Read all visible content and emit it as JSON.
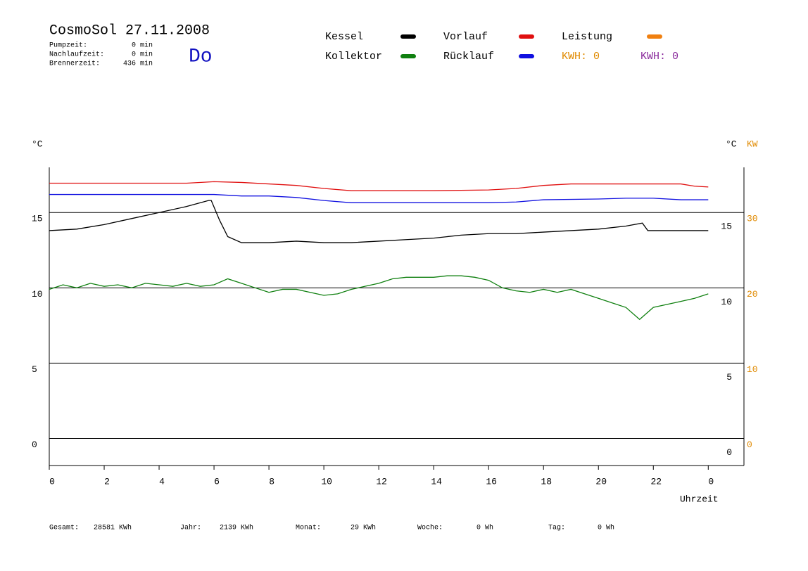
{
  "header": {
    "title": "CosmoSol 27.11.2008",
    "day": "Do",
    "stats": [
      {
        "label": "Pumpzeit:",
        "value": "0 min"
      },
      {
        "label": "Nachlaufzeit:",
        "value": "0 min"
      },
      {
        "label": "Brennerzeit:",
        "value": "436 min"
      }
    ],
    "kwh": [
      {
        "text": "KWH: 0",
        "color": "#e08a00"
      },
      {
        "text": "KWH: 0",
        "color": "#8a2b9c"
      }
    ]
  },
  "footer": [
    {
      "label": "Gesamt:",
      "value": "28581 KWh"
    },
    {
      "label": "Jahr:",
      "value": "2139 KWh"
    },
    {
      "label": "Monat:",
      "value": "29 KWh"
    },
    {
      "label": "Woche:",
      "value": "0 Wh"
    },
    {
      "label": "Tag:",
      "value": "0 Wh"
    }
  ],
  "chart_data": {
    "type": "line",
    "ylabel": "°C",
    "y2label": "°C",
    "y2unit": "KW",
    "xlabel": "Uhrzeit",
    "xlim": [
      0,
      25.3
    ],
    "xticks": [
      0,
      2,
      4,
      6,
      8,
      10,
      12,
      14,
      16,
      18,
      20,
      22,
      {
        "value": 24,
        "label": "0"
      }
    ],
    "ylim": [
      -1.8,
      18
    ],
    "yticks": [
      0,
      5,
      10,
      15
    ],
    "y2lim": [
      -3.6,
      36
    ],
    "y2ticks": [
      0,
      10,
      20,
      30
    ],
    "y2color": "#e08a00",
    "grid": true,
    "series": [
      {
        "name": "Kessel",
        "color": "#000000",
        "x": [
          0,
          1,
          2,
          3,
          4,
          5,
          5.8,
          5.9,
          6.2,
          6.5,
          7,
          8,
          9,
          10,
          11,
          12,
          13,
          14,
          15,
          16,
          17,
          18,
          19,
          20,
          21,
          21.6,
          21.8,
          22,
          23,
          24
        ],
        "values": [
          13.8,
          13.9,
          14.2,
          14.6,
          15.0,
          15.4,
          15.8,
          15.8,
          14.5,
          13.4,
          13.0,
          13.0,
          13.1,
          13.0,
          13.0,
          13.1,
          13.2,
          13.3,
          13.5,
          13.6,
          13.6,
          13.7,
          13.8,
          13.9,
          14.1,
          14.3,
          13.8,
          13.8,
          13.8,
          13.8
        ]
      },
      {
        "name": "Kollektor",
        "color": "#108010",
        "x": [
          0,
          0.5,
          1,
          1.5,
          2,
          2.5,
          3,
          3.5,
          4,
          4.5,
          5,
          5.5,
          6,
          6.5,
          7,
          7.5,
          8,
          8.5,
          9,
          9.5,
          10,
          10.5,
          11,
          11.5,
          12,
          12.5,
          13,
          13.5,
          14,
          14.5,
          15,
          15.5,
          16,
          16.5,
          17,
          17.5,
          18,
          18.5,
          19,
          19.5,
          20,
          20.5,
          21,
          21.5,
          22,
          22.5,
          23,
          23.5,
          24
        ],
        "values": [
          9.9,
          10.2,
          10.0,
          10.3,
          10.1,
          10.2,
          10.0,
          10.3,
          10.2,
          10.1,
          10.3,
          10.1,
          10.2,
          10.6,
          10.3,
          10.0,
          9.7,
          9.9,
          9.9,
          9.7,
          9.5,
          9.6,
          9.9,
          10.1,
          10.3,
          10.6,
          10.7,
          10.7,
          10.7,
          10.8,
          10.8,
          10.7,
          10.5,
          10.0,
          9.8,
          9.7,
          9.9,
          9.7,
          9.9,
          9.6,
          9.3,
          9.0,
          8.7,
          7.9,
          8.7,
          8.9,
          9.1,
          9.3,
          9.6
        ]
      },
      {
        "name": "Vorlauf",
        "color": "#e01010",
        "x": [
          0,
          5,
          6,
          7,
          8,
          9,
          10,
          11,
          12,
          14,
          16,
          17,
          18,
          19,
          20,
          21,
          22,
          23,
          23.5,
          24
        ],
        "values": [
          16.95,
          16.95,
          17.05,
          17.0,
          16.9,
          16.8,
          16.6,
          16.45,
          16.45,
          16.45,
          16.5,
          16.6,
          16.8,
          16.9,
          16.9,
          16.9,
          16.9,
          16.9,
          16.75,
          16.7
        ]
      },
      {
        "name": "Rücklauf",
        "color": "#1010e0",
        "x": [
          0,
          6,
          7,
          8,
          9,
          10,
          11,
          12,
          14,
          16,
          17,
          18,
          20,
          21,
          22,
          23,
          24
        ],
        "values": [
          16.2,
          16.2,
          16.1,
          16.1,
          16.0,
          15.8,
          15.65,
          15.65,
          15.65,
          15.65,
          15.7,
          15.85,
          15.9,
          15.95,
          15.95,
          15.85,
          15.85
        ]
      },
      {
        "name": "Leistung",
        "color": "#f08010",
        "axis": "y2",
        "x": [],
        "values": []
      }
    ]
  }
}
